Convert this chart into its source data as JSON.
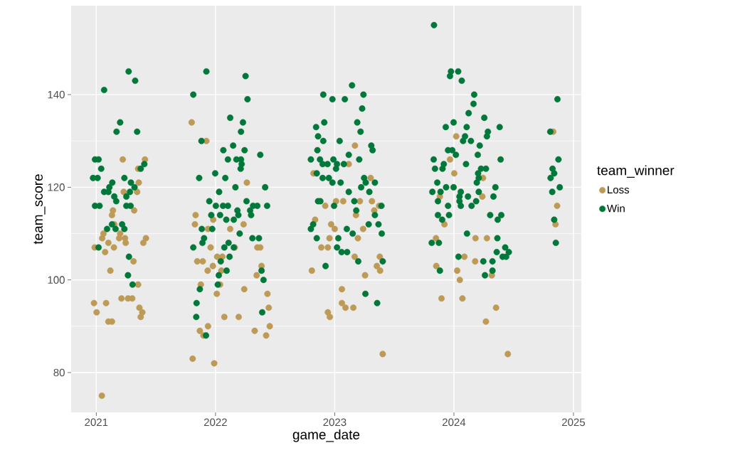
{
  "chart_data": {
    "type": "scatter",
    "xlabel": "game_date",
    "ylabel": "team_score",
    "legend_title": "team_winner",
    "legend": "right",
    "grid": true,
    "marker": "circle",
    "xlim": [
      "2020-10-16",
      "2025-01-25"
    ],
    "xticks": [
      "2021",
      "2022",
      "2023",
      "2024",
      "2025"
    ],
    "ylim": [
      71.4,
      159.2
    ],
    "yticks": [
      80,
      100,
      120,
      140
    ],
    "series": [
      {
        "name": "Loss",
        "color": "#bd9b56",
        "x": [
          "2021-03-23",
          "2021-05-30",
          "2021-05-09",
          "2021-05-11",
          "2021-03-26",
          "2021-05-06",
          "2021-04-27",
          "2021-02-21",
          "2021-02-18",
          "2021-02-25",
          "2021-01-23",
          "2021-01-19",
          "2021-03-15",
          "2021-03-12",
          "2021-03-30",
          "2021-02-07",
          "2021-04-01",
          "2021-06-02",
          "2021-05-25",
          "2020-12-27",
          "2021-02-24",
          "2021-01-28",
          "2021-04-25",
          "2021-02-13",
          "2021-05-09",
          "2020-12-25",
          "2021-01-31",
          "2021-03-19",
          "2021-04-08",
          "2021-04-21",
          "2021-01-02",
          "2021-05-13",
          "2021-05-22",
          "2021-05-17",
          "2021-02-07",
          "2021-02-18",
          "2021-01-18",
          "2021-10-20",
          "2021-12-04",
          "2022-04-07",
          "2021-11-01",
          "2021-12-25",
          "2021-10-30",
          "2022-03-28",
          "2021-12-09",
          "2022-02-15",
          "2021-12-17",
          "2022-03-01",
          "2022-05-09",
          "2022-05-18",
          "2021-11-06",
          "2021-11-23",
          "2022-01-06",
          "2022-01-22",
          "2021-12-24",
          "2021-12-08",
          "2022-01-19",
          "2022-05-22",
          "2022-05-07",
          "2021-11-17",
          "2022-01-15",
          "2022-01-05",
          "2022-03-30",
          "2022-06-09",
          "2022-06-13",
          "2022-01-28",
          "2022-03-13",
          "2021-12-09",
          "2021-11-14",
          "2021-11-25",
          "2022-05-01",
          "2022-06-16",
          "2022-06-05",
          "2021-10-23",
          "2021-12-28",
          "2023-03-04",
          "2023-02-13",
          "2022-10-28",
          "2023-04-21",
          "2023-01-05",
          "2023-01-27",
          "2023-03-19",
          "2023-04-25",
          "2022-12-03",
          "2023-05-17",
          "2023-05-02",
          "2023-03-07",
          "2022-11-02",
          "2022-12-21",
          "2023-01-01",
          "2023-03-29",
          "2022-12-16",
          "2023-03-13",
          "2022-11-21",
          "2022-12-11",
          "2023-03-03",
          "2023-05-19",
          "2023-05-10",
          "2023-05-20",
          "2022-10-23",
          "2023-04-04",
          "2023-01-23",
          "2023-01-23",
          "2023-02-03",
          "2023-02-27",
          "2022-12-11",
          "2022-12-17",
          "2023-05-28",
          "2024-01-08",
          "2023-12-20",
          "2024-01-02",
          "2024-03-30",
          "2023-11-19",
          "2024-03-28",
          "2023-12-03",
          "2023-11-07",
          "2024-03-07",
          "2024-04-11",
          "2024-02-02",
          "2024-03-06",
          "2023-11-08",
          "2024-01-11",
          "2024-01-19",
          "2024-04-26",
          "2023-11-24",
          "2024-01-27",
          "2024-05-09",
          "2024-04-08",
          "2024-06-14",
          "2024-10-31",
          "2024-11-12",
          "2024-11-07"
        ],
        "values": [
          126,
          126,
          124,
          121,
          119,
          119,
          115,
          115,
          114,
          112,
          110,
          109,
          110,
          109,
          109,
          108,
          108,
          109,
          108,
          107,
          107,
          106,
          104,
          102,
          99,
          95,
          95,
          96,
          96,
          96,
          93,
          94,
          93,
          92,
          91,
          91,
          75,
          134,
          130,
          121,
          114,
          113,
          112,
          112,
          111,
          111,
          107,
          107,
          107,
          107,
          104,
          104,
          105,
          105,
          103,
          102,
          102,
          103,
          101,
          99,
          99,
          97,
          98,
          97,
          94,
          92,
          92,
          90,
          89,
          88,
          89,
          90,
          88,
          83,
          82,
          129,
          125,
          123,
          122,
          117,
          117,
          117,
          117,
          116,
          116,
          115,
          114,
          113,
          112,
          111,
          111,
          109,
          109,
          107,
          107,
          105,
          105,
          103,
          102,
          102,
          101,
          98,
          95,
          94,
          94,
          93,
          92,
          84,
          131,
          126,
          123,
          122,
          118,
          118,
          112,
          109,
          109,
          109,
          105,
          104,
          103,
          102,
          100,
          101,
          96,
          96,
          94,
          91,
          84,
          132,
          116,
          112
        ]
      },
      {
        "name": "Win",
        "color": "#00783a",
        "x": [
          "2021-04-10",
          "2021-04-30",
          "2021-01-25",
          "2021-03-15",
          "2021-03-04",
          "2021-05-06",
          "2020-12-28",
          "2021-01-08",
          "2021-01-16",
          "2021-05-28",
          "2021-05-17",
          "2020-12-22",
          "2021-01-05",
          "2021-03-28",
          "2021-02-19",
          "2021-02-10",
          "2021-04-17",
          "2021-04-28",
          "2021-01-25",
          "2021-02-07",
          "2021-04-14",
          "2021-02-25",
          "2021-04-03",
          "2021-03-03",
          "2020-12-28",
          "2021-01-11",
          "2021-04-03",
          "2021-04-16",
          "2021-02-18",
          "2021-03-21",
          "2021-02-03",
          "2021-03-01",
          "2021-03-28",
          "2021-01-08",
          "2021-04-11",
          "2021-04-08",
          "2021-04-22",
          "2021-12-04",
          "2022-04-03",
          "2021-10-25",
          "2022-04-09",
          "2022-02-15",
          "2022-03-26",
          "2022-03-20",
          "2021-11-19",
          "2022-01-25",
          "2022-02-24",
          "2022-03-31",
          "2022-05-18",
          "2022-02-08",
          "2022-03-06",
          "2022-03-20",
          "2022-03-22",
          "2022-03-19",
          "2021-11-12",
          "2021-12-31",
          "2022-01-31",
          "2022-03-03",
          "2022-06-02",
          "2022-01-12",
          "2021-12-13",
          "2022-04-06",
          "2022-01-02",
          "2022-01-24",
          "2022-02-08",
          "2022-04-26",
          "2022-05-09",
          "2022-06-08",
          "2022-03-09",
          "2022-04-17",
          "2021-12-19",
          "2022-01-15",
          "2022-03-12",
          "2022-04-20",
          "2022-02-03",
          "2022-02-26",
          "2021-11-20",
          "2021-12-22",
          "2022-03-16",
          "2021-11-27",
          "2022-04-24",
          "2022-05-14",
          "2021-11-22",
          "2021-10-25",
          "2022-01-28",
          "2022-02-10",
          "2022-02-26",
          "2022-02-13",
          "2022-01-17",
          "2022-02-04",
          "2022-01-11",
          "2022-05-22",
          "2022-05-28",
          "2022-01-08",
          "2021-11-14",
          "2021-11-04",
          "2021-11-03",
          "2022-05-24",
          "2021-12-03",
          "2023-02-23",
          "2022-11-27",
          "2022-12-25",
          "2023-02-01",
          "2023-03-30",
          "2023-03-26",
          "2022-11-30",
          "2022-11-05",
          "2023-03-11",
          "2023-03-21",
          "2022-11-11",
          "2022-11-27",
          "2023-01-16",
          "2023-04-23",
          "2023-04-27",
          "2022-11-09",
          "2023-02-13",
          "2022-10-20",
          "2022-11-17",
          "2022-12-28",
          "2023-03-17",
          "2022-11-25",
          "2022-12-10",
          "2023-01-08",
          "2023-01-29",
          "2023-01-05",
          "2022-11-07",
          "2022-11-25",
          "2022-12-14",
          "2023-04-01",
          "2022-12-25",
          "2023-01-19",
          "2023-03-23",
          "2023-05-04",
          "2023-04-06",
          "2023-04-17",
          "2023-02-13",
          "2022-11-11",
          "2022-11-18",
          "2022-12-30",
          "2023-03-02",
          "2023-05-24",
          "2023-03-08",
          "2023-05-04",
          "2022-10-27",
          "2022-10-20",
          "2023-04-15",
          "2023-05-15",
          "2023-02-07",
          "2023-02-25",
          "2023-05-25",
          "2022-11-07",
          "2023-01-12",
          "2023-01-08",
          "2023-01-22",
          "2023-02-08",
          "2023-03-14",
          "2023-05-28",
          "2022-12-04",
          "2023-04-05",
          "2023-05-11",
          "2023-11-01",
          "2023-12-23",
          "2024-01-14",
          "2023-12-20",
          "2024-01-25",
          "2024-03-03",
          "2024-03-01",
          "2024-02-15",
          "2024-04-03",
          "2023-12-31",
          "2023-12-07",
          "2024-02-09",
          "2024-05-20",
          "2024-04-14",
          "2024-04-11",
          "2024-02-04",
          "2024-01-29",
          "2024-02-22",
          "2024-03-20",
          "2023-12-14",
          "2023-12-27",
          "2024-01-07",
          "2024-03-14",
          "2023-10-31",
          "2024-05-23",
          "2023-12-01",
          "2024-02-07",
          "2023-11-04",
          "2023-11-27",
          "2024-04-08",
          "2024-03-24",
          "2024-03-15",
          "2024-03-17",
          "2023-11-11",
          "2024-03-11",
          "2023-12-08",
          "2023-12-31",
          "2023-10-27",
          "2023-11-21",
          "2024-05-07",
          "2024-01-22",
          "2024-03-17",
          "2024-01-18",
          "2024-02-13",
          "2024-05-01",
          "2023-11-13",
          "2024-01-18",
          "2024-03-09",
          "2023-12-14",
          "2024-01-22",
          "2024-02-24",
          "2023-11-13",
          "2023-12-17",
          "2024-04-21",
          "2024-05-25",
          "2023-11-26",
          "2024-05-14",
          "2024-02-10",
          "2024-05-13",
          "2023-10-25",
          "2023-11-16",
          "2024-05-11",
          "2024-06-06",
          "2024-06-17",
          "2024-05-29",
          "2024-06-09",
          "2024-01-15",
          "2024-03-31",
          "2024-04-28",
          "2023-11-19",
          "2024-04-28",
          "2024-04-05",
          "2024-11-13",
          "2024-10-22",
          "2024-11-16",
          "2024-10-29",
          "2024-11-03",
          "2024-10-23",
          "2024-11-20",
          "2024-10-28",
          "2024-11-03",
          "2024-11-08"
        ],
        "values": [
          145,
          143,
          141,
          134,
          132,
          132,
          126,
          126,
          124,
          125,
          124,
          122,
          122,
          122,
          121,
          120,
          121,
          120,
          119,
          119,
          119,
          118,
          118,
          117,
          116,
          116,
          116,
          116,
          112,
          112,
          111,
          111,
          111,
          107,
          105,
          101,
          99,
          145,
          144,
          140,
          139,
          135,
          134,
          132,
          130,
          128,
          129,
          128,
          127,
          126,
          126,
          126,
          125,
          124,
          122,
          123,
          122,
          120,
          120,
          119,
          117,
          117,
          116,
          116,
          116,
          116,
          116,
          116,
          115,
          115,
          114,
          114,
          114,
          114,
          113,
          113,
          111,
          111,
          110,
          109,
          109,
          109,
          108,
          107,
          107,
          108,
          107,
          105,
          104,
          102,
          101,
          102,
          100,
          99,
          98,
          95,
          92,
          93,
          88,
          142,
          140,
          139,
          139,
          140,
          137,
          134,
          133,
          134,
          132,
          131,
          130,
          130,
          129,
          128,
          128,
          127,
          126,
          126,
          126,
          126,
          125,
          125,
          125,
          125,
          124,
          123,
          122,
          122,
          122,
          121,
          121,
          120,
          121,
          121,
          119,
          119,
          117,
          117,
          116,
          117,
          116,
          115,
          114,
          112,
          111,
          112,
          112,
          111,
          110,
          110,
          109,
          109,
          107,
          106,
          106,
          104,
          104,
          103,
          97,
          95,
          155,
          145,
          145,
          144,
          143,
          140,
          138,
          136,
          135,
          134,
          133,
          133,
          133,
          132,
          131,
          131,
          130,
          130,
          129,
          128,
          128,
          127,
          127,
          126,
          126,
          125,
          125,
          124,
          124,
          124,
          124,
          123,
          122,
          121,
          121,
          120,
          120,
          119,
          119,
          120,
          119,
          119,
          118,
          118,
          118,
          117,
          117,
          117,
          116,
          116,
          116,
          114,
          114,
          114,
          114,
          113,
          113,
          110,
          109,
          108,
          108,
          106,
          107,
          106,
          105,
          105,
          105,
          104,
          104,
          102,
          102,
          101,
          139,
          132,
          126,
          124,
          123,
          122,
          120,
          119,
          113,
          108
        ]
      }
    ]
  }
}
